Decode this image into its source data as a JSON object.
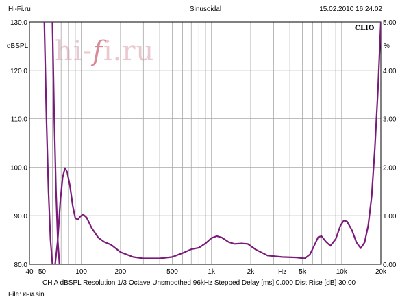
{
  "header": {
    "left": "Hi-Fi.ru",
    "center": "Sinusoidal",
    "right": "15.02.2010 16.24.02"
  },
  "brand": "CLIO",
  "watermark": "hi-fi.ru",
  "footer": {
    "settings": "CH A   dBSPL   Resolution 1/3 Octave   Unsmoothed   96kHz   Stepped     Delay [ms] 0.000    Dist Rise [dB] 30.00",
    "file": "File: кни.sin"
  },
  "colors": {
    "curve": "#7a1a7a",
    "grid": "#a8a8a8",
    "axis": "#000000"
  },
  "chart_data": {
    "type": "line",
    "x_scale": "log",
    "xlim": [
      40,
      20000
    ],
    "ylim": [
      80,
      130
    ],
    "y2lim": [
      0,
      5
    ],
    "y_unit": "dBSPL",
    "y2_unit": "%",
    "grid": true,
    "x_ticks": [
      {
        "value": 40,
        "label": "40"
      },
      {
        "value": 50,
        "label": "50"
      },
      {
        "value": 100,
        "label": "100"
      },
      {
        "value": 200,
        "label": "200"
      },
      {
        "value": 500,
        "label": "500"
      },
      {
        "value": 1000,
        "label": "1k"
      },
      {
        "value": 2000,
        "label": "2k"
      },
      {
        "value": 3500,
        "label": "Hz"
      },
      {
        "value": 5000,
        "label": "5k"
      },
      {
        "value": 10000,
        "label": "10k"
      },
      {
        "value": 20000,
        "label": "20k"
      }
    ],
    "y_ticks": [
      {
        "value": 80,
        "label": "80.0"
      },
      {
        "value": 90,
        "label": "90.0"
      },
      {
        "value": 100,
        "label": "100.0"
      },
      {
        "value": 110,
        "label": "110.0"
      },
      {
        "value": 120,
        "label": "120.0"
      },
      {
        "value": 130,
        "label": "130.0"
      }
    ],
    "y2_ticks": [
      {
        "value": 0,
        "label": "0.00"
      },
      {
        "value": 1,
        "label": "1.00"
      },
      {
        "value": 2,
        "label": "2.00"
      },
      {
        "value": 3,
        "label": "3.00"
      },
      {
        "value": 4,
        "label": "4.00"
      },
      {
        "value": 5,
        "label": "5.00"
      }
    ],
    "series": [
      {
        "points": [
          [
            52,
            130
          ],
          [
            54,
            110
          ],
          [
            56,
            95
          ],
          [
            58,
            85
          ],
          [
            60,
            80
          ],
          [
            63,
            80
          ],
          [
            66,
            85
          ],
          [
            69,
            93
          ],
          [
            72,
            98
          ],
          [
            75,
            99.8
          ],
          [
            78,
            99
          ],
          [
            82,
            96
          ],
          [
            86,
            92
          ],
          [
            90,
            89.5
          ],
          [
            94,
            89.2
          ],
          [
            98,
            89.8
          ],
          [
            103,
            90.3
          ],
          [
            110,
            89.6
          ],
          [
            120,
            87.5
          ],
          [
            135,
            85.5
          ],
          [
            150,
            84.6
          ],
          [
            170,
            84
          ],
          [
            200,
            82.5
          ],
          [
            250,
            81.5
          ],
          [
            300,
            81.2
          ],
          [
            400,
            81.2
          ],
          [
            500,
            81.5
          ],
          [
            600,
            82.3
          ],
          [
            700,
            83.1
          ],
          [
            800,
            83.4
          ],
          [
            900,
            84.3
          ],
          [
            1000,
            85.4
          ],
          [
            1100,
            85.8
          ],
          [
            1200,
            85.5
          ],
          [
            1350,
            84.6
          ],
          [
            1500,
            84.2
          ],
          [
            1700,
            84.3
          ],
          [
            1900,
            84.2
          ],
          [
            2200,
            83
          ],
          [
            2700,
            81.8
          ],
          [
            3500,
            81.5
          ],
          [
            4500,
            81.4
          ],
          [
            5200,
            81.2
          ],
          [
            5700,
            82
          ],
          [
            6200,
            84
          ],
          [
            6600,
            85.6
          ],
          [
            7000,
            85.8
          ],
          [
            7600,
            84.6
          ],
          [
            8200,
            83.8
          ],
          [
            9000,
            85.2
          ],
          [
            9800,
            88
          ],
          [
            10400,
            89
          ],
          [
            11000,
            88.8
          ],
          [
            12000,
            87
          ],
          [
            13000,
            84.5
          ],
          [
            14000,
            83.3
          ],
          [
            15000,
            84.5
          ],
          [
            16000,
            88
          ],
          [
            17000,
            94
          ],
          [
            18000,
            104
          ],
          [
            19000,
            116
          ],
          [
            20000,
            130
          ]
        ]
      },
      {
        "points": [
          [
            60,
            130
          ],
          [
            62,
            110
          ],
          [
            64,
            95
          ],
          [
            66,
            85
          ],
          [
            68,
            80
          ]
        ]
      }
    ]
  }
}
